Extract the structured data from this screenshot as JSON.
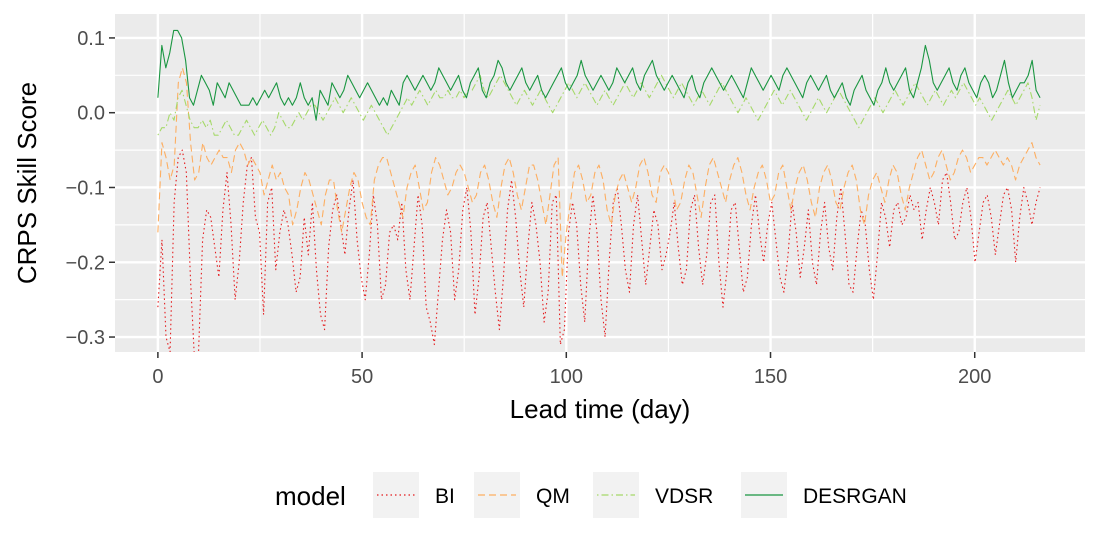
{
  "chart_data": {
    "type": "line",
    "xlabel": "Lead time (day)",
    "ylabel": "CRPS Skill Score",
    "xlim": [
      -10.5,
      227
    ],
    "ylim": [
      -0.32,
      0.132
    ],
    "x_ticks": [
      0,
      50,
      100,
      150,
      200
    ],
    "x_tick_labels": [
      "0",
      "50",
      "100",
      "150",
      "200"
    ],
    "y_ticks": [
      -0.3,
      -0.2,
      -0.1,
      0.0,
      0.1
    ],
    "y_tick_labels": [
      "−0.3",
      "−0.2",
      "−0.1",
      "0.0",
      "0.1"
    ],
    "grid": true,
    "legend_title": "model",
    "legend_position": "bottom",
    "x_range": [
      0,
      216
    ],
    "series": [
      {
        "name": "BI",
        "color": "#e41a1c",
        "dash": "dotted",
        "values": [
          -0.26,
          -0.17,
          -0.3,
          -0.32,
          -0.12,
          -0.06,
          -0.05,
          -0.08,
          -0.22,
          -0.33,
          -0.32,
          -0.17,
          -0.13,
          -0.14,
          -0.18,
          -0.22,
          -0.13,
          -0.08,
          -0.15,
          -0.25,
          -0.2,
          -0.12,
          -0.07,
          -0.06,
          -0.14,
          -0.16,
          -0.27,
          -0.12,
          -0.1,
          -0.21,
          -0.16,
          -0.13,
          -0.15,
          -0.19,
          -0.24,
          -0.22,
          -0.14,
          -0.19,
          -0.12,
          -0.21,
          -0.27,
          -0.29,
          -0.18,
          -0.13,
          -0.11,
          -0.15,
          -0.19,
          -0.13,
          -0.09,
          -0.17,
          -0.22,
          -0.25,
          -0.19,
          -0.11,
          -0.15,
          -0.25,
          -0.23,
          -0.16,
          -0.15,
          -0.17,
          -0.12,
          -0.21,
          -0.25,
          -0.18,
          -0.11,
          -0.15,
          -0.26,
          -0.28,
          -0.31,
          -0.24,
          -0.17,
          -0.13,
          -0.16,
          -0.25,
          -0.21,
          -0.13,
          -0.1,
          -0.16,
          -0.27,
          -0.22,
          -0.14,
          -0.12,
          -0.18,
          -0.24,
          -0.29,
          -0.22,
          -0.13,
          -0.09,
          -0.14,
          -0.21,
          -0.26,
          -0.18,
          -0.12,
          -0.15,
          -0.2,
          -0.28,
          -0.24,
          -0.12,
          -0.11,
          -0.31,
          -0.29,
          -0.16,
          -0.12,
          -0.15,
          -0.23,
          -0.28,
          -0.17,
          -0.11,
          -0.16,
          -0.25,
          -0.3,
          -0.2,
          -0.12,
          -0.1,
          -0.15,
          -0.21,
          -0.24,
          -0.15,
          -0.11,
          -0.17,
          -0.23,
          -0.18,
          -0.13,
          -0.15,
          -0.21,
          -0.19,
          -0.16,
          -0.12,
          -0.18,
          -0.23,
          -0.21,
          -0.13,
          -0.11,
          -0.18,
          -0.23,
          -0.19,
          -0.12,
          -0.11,
          -0.2,
          -0.26,
          -0.21,
          -0.13,
          -0.12,
          -0.18,
          -0.24,
          -0.22,
          -0.15,
          -0.11,
          -0.16,
          -0.2,
          -0.15,
          -0.12,
          -0.17,
          -0.22,
          -0.24,
          -0.19,
          -0.12,
          -0.16,
          -0.22,
          -0.18,
          -0.13,
          -0.2,
          -0.23,
          -0.16,
          -0.12,
          -0.18,
          -0.21,
          -0.14,
          -0.1,
          -0.16,
          -0.23,
          -0.24,
          -0.18,
          -0.13,
          -0.15,
          -0.21,
          -0.25,
          -0.19,
          -0.12,
          -0.14,
          -0.18,
          -0.13,
          -0.12,
          -0.15,
          -0.14,
          -0.11,
          -0.13,
          -0.12,
          -0.17,
          -0.13,
          -0.1,
          -0.12,
          -0.15,
          -0.09,
          -0.08,
          -0.12,
          -0.17,
          -0.16,
          -0.12,
          -0.1,
          -0.14,
          -0.2,
          -0.16,
          -0.12,
          -0.11,
          -0.14,
          -0.19,
          -0.15,
          -0.11,
          -0.1,
          -0.13,
          -0.2,
          -0.14,
          -0.1,
          -0.12,
          -0.15,
          -0.12,
          -0.1
        ]
      },
      {
        "name": "QM",
        "color": "#fdae61",
        "dash": "dashed",
        "values": [
          -0.16,
          -0.04,
          -0.06,
          -0.09,
          -0.07,
          0.04,
          0.06,
          0.04,
          -0.04,
          -0.09,
          -0.08,
          -0.04,
          -0.06,
          -0.07,
          -0.06,
          -0.05,
          -0.06,
          -0.06,
          -0.08,
          -0.05,
          -0.04,
          -0.05,
          -0.07,
          -0.06,
          -0.07,
          -0.08,
          -0.11,
          -0.09,
          -0.07,
          -0.09,
          -0.08,
          -0.1,
          -0.11,
          -0.15,
          -0.13,
          -0.1,
          -0.08,
          -0.09,
          -0.11,
          -0.13,
          -0.15,
          -0.11,
          -0.09,
          -0.09,
          -0.13,
          -0.16,
          -0.13,
          -0.1,
          -0.08,
          -0.09,
          -0.12,
          -0.14,
          -0.15,
          -0.09,
          -0.07,
          -0.06,
          -0.06,
          -0.08,
          -0.1,
          -0.12,
          -0.14,
          -0.1,
          -0.08,
          -0.07,
          -0.1,
          -0.13,
          -0.12,
          -0.08,
          -0.06,
          -0.07,
          -0.09,
          -0.11,
          -0.1,
          -0.08,
          -0.07,
          -0.08,
          -0.1,
          -0.12,
          -0.11,
          -0.08,
          -0.07,
          -0.09,
          -0.12,
          -0.14,
          -0.1,
          -0.07,
          -0.06,
          -0.08,
          -0.11,
          -0.13,
          -0.1,
          -0.07,
          -0.07,
          -0.09,
          -0.12,
          -0.15,
          -0.11,
          -0.07,
          -0.06,
          -0.22,
          -0.16,
          -0.12,
          -0.08,
          -0.07,
          -0.09,
          -0.12,
          -0.11,
          -0.08,
          -0.07,
          -0.09,
          -0.13,
          -0.15,
          -0.11,
          -0.09,
          -0.08,
          -0.1,
          -0.12,
          -0.1,
          -0.07,
          -0.06,
          -0.08,
          -0.11,
          -0.12,
          -0.08,
          -0.07,
          -0.08,
          -0.1,
          -0.13,
          -0.12,
          -0.09,
          -0.07,
          -0.08,
          -0.11,
          -0.14,
          -0.1,
          -0.07,
          -0.06,
          -0.08,
          -0.1,
          -0.12,
          -0.09,
          -0.07,
          -0.06,
          -0.08,
          -0.11,
          -0.13,
          -0.1,
          -0.08,
          -0.07,
          -0.09,
          -0.12,
          -0.11,
          -0.08,
          -0.07,
          -0.1,
          -0.13,
          -0.1,
          -0.08,
          -0.07,
          -0.09,
          -0.12,
          -0.14,
          -0.1,
          -0.08,
          -0.07,
          -0.09,
          -0.12,
          -0.13,
          -0.1,
          -0.08,
          -0.07,
          -0.09,
          -0.13,
          -0.15,
          -0.11,
          -0.09,
          -0.08,
          -0.1,
          -0.12,
          -0.09,
          -0.07,
          -0.08,
          -0.11,
          -0.13,
          -0.1,
          -0.08,
          -0.06,
          -0.05,
          -0.07,
          -0.09,
          -0.08,
          -0.06,
          -0.05,
          -0.07,
          -0.09,
          -0.08,
          -0.06,
          -0.05,
          -0.06,
          -0.08,
          -0.07,
          -0.06,
          -0.06,
          -0.07,
          -0.06,
          -0.05,
          -0.06,
          -0.07,
          -0.06,
          -0.07,
          -0.09,
          -0.07,
          -0.06,
          -0.05,
          -0.04,
          -0.06,
          -0.07
        ]
      },
      {
        "name": "VDSR",
        "color": "#a6d96a",
        "dash": "dotdash",
        "values": [
          -0.03,
          -0.02,
          -0.02,
          0.0,
          -0.01,
          0.02,
          0.03,
          0.01,
          -0.01,
          -0.02,
          -0.02,
          -0.01,
          -0.02,
          -0.01,
          -0.03,
          -0.03,
          -0.02,
          -0.01,
          -0.02,
          -0.03,
          -0.03,
          -0.02,
          -0.01,
          -0.02,
          -0.03,
          -0.02,
          -0.01,
          -0.02,
          -0.03,
          -0.02,
          0.0,
          -0.01,
          -0.02,
          -0.02,
          -0.01,
          0.0,
          -0.01,
          0.0,
          0.01,
          0.01,
          0.0,
          -0.01,
          0.0,
          0.01,
          0.02,
          0.01,
          0.0,
          0.01,
          0.02,
          0.01,
          0.0,
          -0.01,
          0.0,
          0.01,
          0.0,
          -0.01,
          -0.02,
          -0.03,
          -0.02,
          -0.01,
          0.0,
          0.01,
          0.02,
          0.01,
          0.02,
          0.03,
          0.02,
          0.01,
          0.02,
          0.03,
          0.02,
          0.02,
          0.03,
          0.02,
          0.02,
          0.03,
          0.02,
          0.03,
          0.03,
          0.04,
          0.05,
          0.03,
          0.02,
          0.03,
          0.04,
          0.05,
          0.04,
          0.03,
          0.02,
          0.01,
          0.02,
          0.03,
          0.02,
          0.01,
          0.02,
          0.03,
          0.02,
          0.01,
          0.0,
          0.01,
          0.02,
          0.03,
          0.04,
          0.03,
          0.02,
          0.03,
          0.04,
          0.03,
          0.02,
          0.01,
          0.02,
          0.03,
          0.02,
          0.01,
          0.02,
          0.03,
          0.04,
          0.03,
          0.02,
          0.03,
          0.04,
          0.03,
          0.02,
          0.03,
          0.04,
          0.05,
          0.04,
          0.03,
          0.02,
          0.03,
          0.04,
          0.03,
          0.02,
          0.01,
          0.02,
          0.03,
          0.02,
          0.01,
          0.02,
          0.03,
          0.04,
          0.03,
          0.02,
          0.01,
          0.0,
          0.01,
          0.02,
          0.01,
          0.0,
          -0.01,
          0.0,
          0.01,
          0.02,
          0.03,
          0.02,
          0.01,
          0.02,
          0.03,
          0.02,
          0.01,
          0.0,
          -0.01,
          0.0,
          0.01,
          0.02,
          0.01,
          0.0,
          0.01,
          0.02,
          0.03,
          0.02,
          0.01,
          0.0,
          -0.01,
          -0.02,
          -0.01,
          0.0,
          0.01,
          0.02,
          0.01,
          0.0,
          0.01,
          0.02,
          0.03,
          0.02,
          0.01,
          0.02,
          0.03,
          0.04,
          0.03,
          0.02,
          0.01,
          0.02,
          0.03,
          0.02,
          0.01,
          0.02,
          0.03,
          0.02,
          0.03,
          0.04,
          0.03,
          0.02,
          0.01,
          0.02,
          0.01,
          0.0,
          -0.01,
          0.0,
          0.01,
          0.02,
          0.03,
          0.02,
          0.01,
          0.02,
          0.03,
          0.04,
          0.02,
          -0.01,
          0.01
        ]
      },
      {
        "name": "DESRGAN",
        "color": "#1a9641",
        "dash": "solid",
        "values": [
          0.02,
          0.09,
          0.06,
          0.08,
          0.11,
          0.11,
          0.1,
          0.07,
          0.02,
          0.01,
          0.03,
          0.05,
          0.04,
          0.03,
          0.01,
          0.04,
          0.03,
          0.02,
          0.04,
          0.03,
          0.02,
          0.01,
          0.01,
          0.01,
          0.02,
          0.01,
          0.02,
          0.03,
          0.02,
          0.03,
          0.04,
          0.02,
          0.01,
          0.02,
          0.01,
          0.02,
          0.04,
          0.02,
          0.01,
          0.02,
          -0.01,
          0.03,
          0.02,
          0.01,
          0.04,
          0.03,
          0.02,
          0.03,
          0.05,
          0.04,
          0.03,
          0.02,
          0.03,
          0.04,
          0.03,
          0.02,
          0.01,
          0.02,
          0.01,
          0.03,
          0.02,
          0.01,
          0.04,
          0.05,
          0.04,
          0.03,
          0.04,
          0.05,
          0.04,
          0.03,
          0.04,
          0.06,
          0.05,
          0.04,
          0.03,
          0.04,
          0.05,
          0.03,
          0.02,
          0.04,
          0.05,
          0.06,
          0.03,
          0.02,
          0.04,
          0.05,
          0.07,
          0.06,
          0.04,
          0.03,
          0.04,
          0.05,
          0.06,
          0.04,
          0.03,
          0.04,
          0.05,
          0.03,
          0.02,
          0.03,
          0.04,
          0.05,
          0.06,
          0.04,
          0.03,
          0.04,
          0.05,
          0.07,
          0.05,
          0.04,
          0.03,
          0.04,
          0.05,
          0.04,
          0.03,
          0.04,
          0.06,
          0.05,
          0.04,
          0.05,
          0.06,
          0.04,
          0.03,
          0.05,
          0.06,
          0.07,
          0.05,
          0.04,
          0.03,
          0.04,
          0.05,
          0.04,
          0.03,
          0.02,
          0.04,
          0.05,
          0.03,
          0.02,
          0.04,
          0.05,
          0.06,
          0.05,
          0.04,
          0.03,
          0.04,
          0.05,
          0.04,
          0.03,
          0.02,
          0.04,
          0.06,
          0.05,
          0.04,
          0.03,
          0.04,
          0.05,
          0.04,
          0.03,
          0.05,
          0.06,
          0.05,
          0.04,
          0.03,
          0.02,
          0.04,
          0.05,
          0.04,
          0.03,
          0.04,
          0.05,
          0.03,
          0.02,
          0.03,
          0.04,
          0.02,
          0.01,
          0.03,
          0.04,
          0.05,
          0.03,
          0.02,
          0.01,
          0.03,
          0.04,
          0.06,
          0.04,
          0.03,
          0.04,
          0.05,
          0.06,
          0.03,
          0.02,
          0.04,
          0.06,
          0.09,
          0.07,
          0.04,
          0.03,
          0.04,
          0.05,
          0.06,
          0.04,
          0.03,
          0.05,
          0.06,
          0.04,
          0.03,
          0.02,
          0.04,
          0.05,
          0.04,
          0.02,
          0.03,
          0.05,
          0.07,
          0.04,
          0.02,
          0.03,
          0.04,
          0.04,
          0.05,
          0.07,
          0.03,
          0.02
        ]
      }
    ]
  }
}
